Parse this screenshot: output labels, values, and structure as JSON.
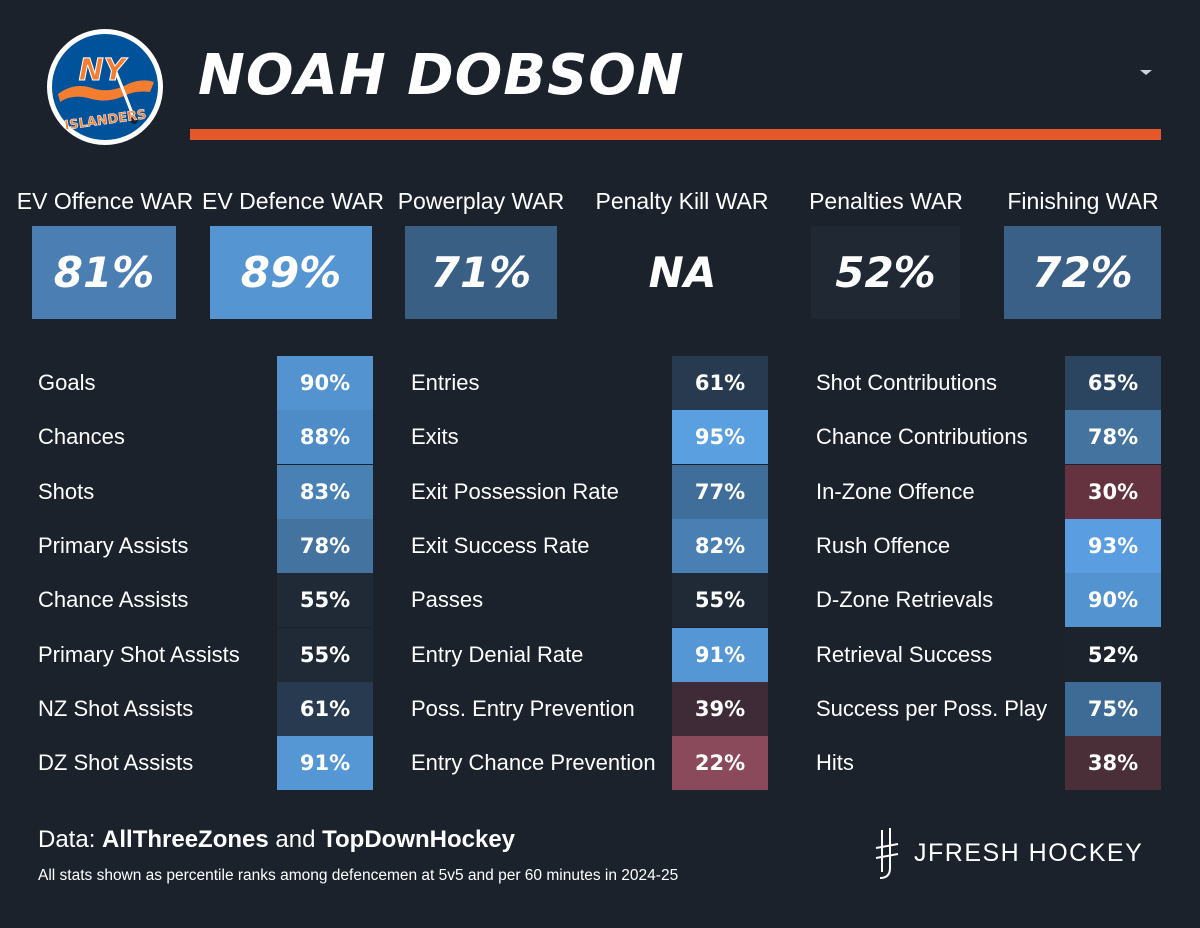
{
  "header": {
    "player_name": "NOAH DOBSON",
    "logo_top_text": "NY",
    "logo_bottom_text": "ISLANDERS"
  },
  "colors": {
    "background": "#1b222b",
    "accent": "#e5582b",
    "team_blue": "#00539b",
    "team_orange": "#f47d30"
  },
  "war": [
    {
      "label": "EV Offence WAR",
      "value": "81%",
      "color": "#4b7eb2"
    },
    {
      "label": "EV Defence WAR",
      "value": "89%",
      "color": "#5596d2"
    },
    {
      "label": "Powerplay WAR",
      "value": "71%",
      "color": "#3a5f85"
    },
    {
      "label": "Penalty Kill WAR",
      "value": "NA",
      "color": "#1b222b"
    },
    {
      "label": "Penalties WAR",
      "value": "52%",
      "color": "#1f2833"
    },
    {
      "label": "Finishing WAR",
      "value": "72%",
      "color": "#3a6088"
    }
  ],
  "columns": [
    {
      "name": "offence",
      "rows": [
        {
          "label": "Goals",
          "value": "90%",
          "color": "#5293d0"
        },
        {
          "label": "Chances",
          "value": "88%",
          "color": "#4d8cc6"
        },
        {
          "label": "Shots",
          "value": "83%",
          "color": "#4a81b5"
        },
        {
          "label": "Primary Assists",
          "value": "78%",
          "color": "#45739f"
        },
        {
          "label": "Chance Assists",
          "value": "55%",
          "color": "#202a36"
        },
        {
          "label": "Primary Shot Assists",
          "value": "55%",
          "color": "#202a36"
        },
        {
          "label": "NZ Shot Assists",
          "value": "61%",
          "color": "#273a50"
        },
        {
          "label": "DZ Shot Assists",
          "value": "91%",
          "color": "#5497d4"
        }
      ]
    },
    {
      "name": "transition",
      "rows": [
        {
          "label": "Entries",
          "value": "61%",
          "color": "#273a50"
        },
        {
          "label": "Exits",
          "value": "95%",
          "color": "#5aa0e0"
        },
        {
          "label": "Exit Possession Rate",
          "value": "77%",
          "color": "#406e9b"
        },
        {
          "label": "Exit Success Rate",
          "value": "82%",
          "color": "#4a7fb3"
        },
        {
          "label": "Passes",
          "value": "55%",
          "color": "#202a36"
        },
        {
          "label": "Entry Denial Rate",
          "value": "91%",
          "color": "#5497d4"
        },
        {
          "label": "Poss. Entry Prevention",
          "value": "39%",
          "color": "#3e2b37"
        },
        {
          "label": "Entry Chance Prevention",
          "value": "22%",
          "color": "#8b4a5c"
        }
      ]
    },
    {
      "name": "involvement",
      "rows": [
        {
          "label": "Shot Contributions",
          "value": "65%",
          "color": "#2b4560"
        },
        {
          "label": "Chance Contributions",
          "value": "78%",
          "color": "#45739f"
        },
        {
          "label": "In-Zone Offence",
          "value": "30%",
          "color": "#64333f"
        },
        {
          "label": "Rush Offence",
          "value": "93%",
          "color": "#5a9de0"
        },
        {
          "label": "D-Zone Retrievals",
          "value": "90%",
          "color": "#5293d0"
        },
        {
          "label": "Retrieval Success",
          "value": "52%",
          "color": "#1c232d"
        },
        {
          "label": "Success per Poss. Play",
          "value": "75%",
          "color": "#3e6a96"
        },
        {
          "label": "Hits",
          "value": "38%",
          "color": "#4a2e38"
        }
      ]
    }
  ],
  "footer": {
    "data_prefix": "Data: ",
    "source_one": "AllThreeZones",
    "connector": " and ",
    "source_two": "TopDownHockey",
    "note": "All stats shown as percentile ranks among defencemen at 5v5 and per 60 minutes in 2024-25",
    "brand": "JFRESH HOCKEY"
  }
}
